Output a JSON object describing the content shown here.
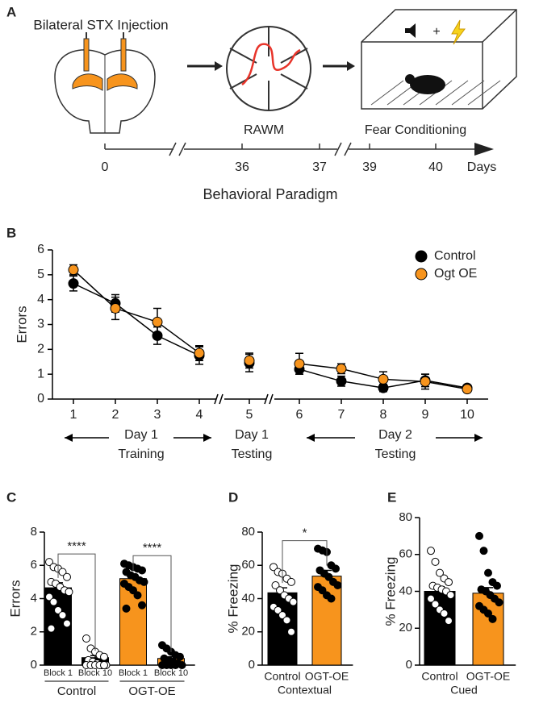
{
  "diagram": {
    "panel": "A",
    "injection_label": "Bilateral STX Injection",
    "plus": "+",
    "timeline": {
      "ticks": [
        0,
        36,
        37,
        39,
        40
      ],
      "unit": "Days",
      "phases": [
        "RAWM",
        "Fear Conditioning"
      ]
    },
    "caption": "Behavioral Paradigm"
  },
  "chart_data": [
    {
      "type": "line",
      "panel": "B",
      "ylabel": "Errors",
      "x": [
        1,
        2,
        3,
        4,
        5,
        6,
        7,
        8,
        9,
        10
      ],
      "xlim": [
        0.5,
        10.5
      ],
      "xticks": [
        1,
        2,
        3,
        4,
        5,
        6,
        7,
        8,
        9,
        10
      ],
      "ylim": [
        0,
        6
      ],
      "yticks": [
        0,
        1,
        2,
        3,
        4,
        5,
        6
      ],
      "axis_breaks": [
        4.5,
        5.5
      ],
      "legend": "upper right",
      "series": [
        {
          "name": "Control",
          "color": "#000000",
          "values": [
            4.65,
            3.85,
            2.55,
            1.75,
            1.45,
            1.2,
            0.72,
            0.45,
            0.75,
            0.45
          ],
          "errors": [
            0.3,
            0.35,
            0.35,
            0.35,
            0.35,
            0.2,
            0.2,
            0.15,
            0.25,
            0.1
          ]
        },
        {
          "name": "Ogt OE",
          "color": "#f7941d",
          "values": [
            5.2,
            3.65,
            3.1,
            1.85,
            1.55,
            1.42,
            1.22,
            0.8,
            0.7,
            0.4
          ],
          "errors": [
            0.2,
            0.45,
            0.55,
            0.3,
            0.3,
            0.42,
            0.2,
            0.3,
            0.3,
            0.1
          ]
        }
      ],
      "phases": [
        [
          "Day 1",
          "Training"
        ],
        [
          "Day 1",
          "Testing"
        ],
        [
          "Day 2",
          "Testing"
        ]
      ]
    },
    {
      "type": "bar",
      "panel": "C",
      "ylabel": "Errors",
      "categories": [
        "Block 1",
        "Block 10",
        "Block 1",
        "Block 10"
      ],
      "groups": [
        "Control",
        "OGT-OE"
      ],
      "values": [
        4.65,
        0.45,
        5.2,
        0.4
      ],
      "errors": [
        0.3,
        0.12,
        0.2,
        0.1
      ],
      "colors": [
        "#000000",
        "#000000",
        "#f7941d",
        "#f7941d"
      ],
      "points": [
        [
          6.2,
          5.9,
          5.8,
          5.6,
          5.3,
          5.0,
          4.9,
          4.7,
          4.5,
          4.4,
          4.1,
          3.8,
          3.3,
          3.0,
          2.5,
          2.2
        ],
        [
          1.6,
          1.0,
          0.8,
          0.6,
          0.5,
          0.3,
          0.2,
          0.1,
          0,
          0,
          0,
          0,
          0,
          0,
          0
        ],
        [
          6.1,
          6.0,
          5.9,
          5.8,
          5.7,
          5.6,
          5.4,
          5.3,
          5.1,
          5.0,
          4.9,
          4.7,
          4.5,
          4.2,
          3.6,
          3.4
        ],
        [
          1.2,
          1.0,
          0.8,
          0.6,
          0.5,
          0.4,
          0.3,
          0.2,
          0.1,
          0,
          0,
          0,
          0,
          0
        ]
      ],
      "point_colors": [
        "#ffffff",
        "#ffffff",
        "#000000",
        "#000000"
      ],
      "annotations": [
        "****",
        "****"
      ],
      "ylim": [
        0,
        8
      ],
      "yticks": [
        0,
        2,
        4,
        6,
        8
      ]
    },
    {
      "type": "bar",
      "panel": "D",
      "ylabel": "% Freezing",
      "xlabel": "Contextual",
      "categories": [
        "Control",
        "OGT-OE"
      ],
      "values": [
        43.5,
        53.5
      ],
      "errors": [
        3,
        3.5
      ],
      "colors": [
        "#000000",
        "#f7941d"
      ],
      "points": [
        [
          59,
          56,
          55,
          52,
          50,
          48,
          45,
          42,
          40,
          38,
          35,
          33,
          30,
          27,
          20
        ],
        [
          70,
          69,
          68,
          60,
          58,
          57,
          55,
          53,
          50,
          48,
          47,
          45,
          42,
          40
        ]
      ],
      "point_colors": [
        "#ffffff",
        "#000000"
      ],
      "annotations": [
        "*"
      ],
      "ylim": [
        0,
        80
      ],
      "yticks": [
        0,
        20,
        40,
        60,
        80
      ]
    },
    {
      "type": "bar",
      "panel": "E",
      "ylabel": "% Freezing",
      "xlabel": "Cued",
      "categories": [
        "Control",
        "OGT-OE"
      ],
      "values": [
        40,
        39
      ],
      "errors": [
        2.5,
        3
      ],
      "colors": [
        "#000000",
        "#f7941d"
      ],
      "points": [
        [
          62,
          56,
          50,
          47,
          45,
          43,
          42,
          41,
          40,
          38,
          36,
          33,
          30,
          28,
          24
        ],
        [
          70,
          62,
          50,
          45,
          43,
          41,
          40,
          38,
          36,
          34,
          32,
          30,
          28,
          25
        ]
      ],
      "point_colors": [
        "#ffffff",
        "#000000"
      ],
      "ylim": [
        0,
        80
      ],
      "yticks": [
        0,
        20,
        40,
        60,
        80
      ]
    }
  ]
}
